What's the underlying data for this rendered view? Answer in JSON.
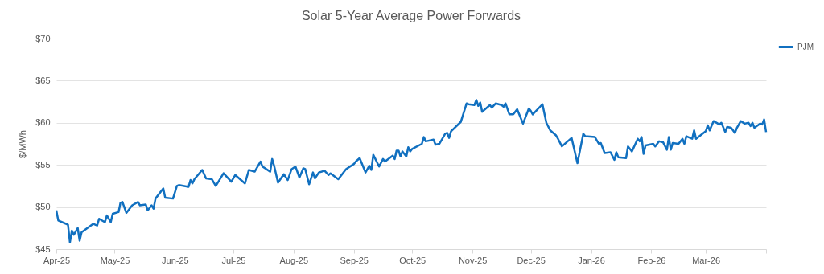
{
  "chart_data": {
    "type": "line",
    "title": "Solar 5-Year Average Power Forwards",
    "ylabel": "$/MWh",
    "x": [
      "2025-04-01",
      "2025-04-02",
      "2025-04-05",
      "2025-04-07",
      "2025-04-08",
      "2025-04-09",
      "2025-04-10",
      "2025-04-12",
      "2025-04-13",
      "2025-04-14",
      "2025-04-20",
      "2025-04-22",
      "2025-04-23",
      "2025-04-26",
      "2025-04-27",
      "2025-04-29",
      "2025-04-30",
      "2025-05-03",
      "2025-05-04",
      "2025-05-05",
      "2025-05-07",
      "2025-05-10",
      "2025-05-13",
      "2025-05-14",
      "2025-05-17",
      "2025-05-18",
      "2025-05-20",
      "2025-05-21",
      "2025-05-22",
      "2025-05-26",
      "2025-05-27",
      "2025-05-31",
      "2025-06-02",
      "2025-06-03",
      "2025-06-08",
      "2025-06-09",
      "2025-06-10",
      "2025-06-11",
      "2025-06-15",
      "2025-06-17",
      "2025-06-20",
      "2025-06-22",
      "2025-06-26",
      "2025-06-30",
      "2025-07-02",
      "2025-07-07",
      "2025-07-09",
      "2025-07-12",
      "2025-07-15",
      "2025-07-16",
      "2025-07-20",
      "2025-07-21",
      "2025-07-22",
      "2025-07-24",
      "2025-07-27",
      "2025-07-29",
      "2025-07-31",
      "2025-08-02",
      "2025-08-04",
      "2025-08-06",
      "2025-08-07",
      "2025-08-09",
      "2025-08-11",
      "2025-08-12",
      "2025-08-14",
      "2025-08-17",
      "2025-08-19",
      "2025-08-20",
      "2025-08-24",
      "2025-08-28",
      "2025-09-01",
      "2025-09-02",
      "2025-09-04",
      "2025-09-07",
      "2025-09-09",
      "2025-09-10",
      "2025-09-11",
      "2025-09-14",
      "2025-09-16",
      "2025-09-17",
      "2025-09-21",
      "2025-09-22",
      "2025-09-23",
      "2025-09-24",
      "2025-09-25",
      "2025-09-26",
      "2025-09-28",
      "2025-09-29",
      "2025-09-30",
      "2025-10-01",
      "2025-10-06",
      "2025-10-07",
      "2025-10-08",
      "2025-10-12",
      "2025-10-13",
      "2025-10-15",
      "2025-10-18",
      "2025-10-19",
      "2025-10-20",
      "2025-10-21",
      "2025-10-26",
      "2025-10-29",
      "2025-10-30",
      "2025-11-02",
      "2025-11-03",
      "2025-11-04",
      "2025-11-05",
      "2025-11-06",
      "2025-11-10",
      "2025-11-11",
      "2025-11-13",
      "2025-11-16",
      "2025-11-17",
      "2025-11-18",
      "2025-11-20",
      "2025-11-22",
      "2025-11-24",
      "2025-11-27",
      "2025-11-30",
      "2025-12-01",
      "2025-12-02",
      "2025-12-07",
      "2025-12-09",
      "2025-12-11",
      "2025-12-14",
      "2025-12-15",
      "2025-12-17",
      "2025-12-22",
      "2025-12-25",
      "2025-12-28",
      "2025-12-29",
      "2026-01-03",
      "2026-01-05",
      "2026-01-06",
      "2026-01-08",
      "2026-01-11",
      "2026-01-13",
      "2026-01-14",
      "2026-01-15",
      "2026-01-19",
      "2026-01-20",
      "2026-01-22",
      "2026-01-25",
      "2026-01-26",
      "2026-01-27",
      "2026-01-28",
      "2026-01-29",
      "2026-02-02",
      "2026-02-03",
      "2026-02-05",
      "2026-02-07",
      "2026-02-09",
      "2026-02-10",
      "2026-02-11",
      "2026-02-12",
      "2026-02-15",
      "2026-02-17",
      "2026-02-18",
      "2026-02-19",
      "2026-02-22",
      "2026-02-23",
      "2026-02-24",
      "2026-03-01",
      "2026-03-02",
      "2026-03-03",
      "2026-03-05",
      "2026-03-08",
      "2026-03-09",
      "2026-03-11",
      "2026-03-12",
      "2026-03-14",
      "2026-03-16",
      "2026-03-17",
      "2026-03-19",
      "2026-03-21",
      "2026-03-23",
      "2026-03-24",
      "2026-03-25",
      "2026-03-26",
      "2026-03-29",
      "2026-03-30",
      "2026-03-31",
      "2026-04-01"
    ],
    "series": [
      {
        "name": "PJM",
        "color": "#1170c0",
        "values": [
          49.6,
          48.4,
          48.1,
          47.9,
          45.8,
          47.2,
          46.7,
          47.5,
          46.0,
          47.0,
          48.0,
          47.8,
          48.6,
          48.2,
          49.0,
          48.2,
          49.2,
          49.4,
          50.5,
          50.6,
          49.3,
          50.2,
          50.6,
          50.2,
          50.3,
          49.6,
          50.2,
          49.8,
          51.0,
          52.2,
          51.1,
          51.0,
          52.5,
          52.6,
          52.4,
          53.2,
          52.8,
          53.3,
          54.4,
          53.4,
          53.3,
          52.5,
          54.0,
          53.0,
          53.8,
          52.8,
          54.4,
          54.2,
          55.4,
          54.8,
          54.2,
          55.7,
          54.9,
          52.9,
          53.9,
          53.2,
          54.5,
          54.8,
          53.5,
          54.6,
          54.5,
          52.7,
          54.1,
          53.4,
          54.1,
          54.3,
          53.8,
          54.0,
          53.3,
          54.5,
          55.1,
          55.4,
          55.8,
          54.1,
          54.9,
          54.4,
          56.2,
          54.8,
          55.7,
          55.4,
          56.1,
          55.7,
          56.7,
          56.7,
          56.0,
          56.6,
          56.0,
          57.1,
          56.6,
          56.9,
          57.5,
          58.3,
          57.8,
          58.0,
          57.4,
          57.5,
          58.7,
          58.8,
          58.2,
          59.0,
          60.1,
          62.3,
          62.2,
          62.1,
          62.7,
          62.0,
          62.4,
          61.3,
          62.1,
          61.8,
          62.3,
          62.1,
          61.9,
          62.3,
          61.0,
          61.0,
          61.6,
          59.9,
          61.7,
          61.4,
          61.0,
          62.2,
          60.0,
          59.1,
          58.5,
          58.1,
          57.2,
          58.2,
          55.2,
          58.7,
          58.4,
          58.3,
          57.5,
          57.6,
          56.4,
          56.5,
          55.6,
          56.5,
          55.9,
          55.8,
          57.2,
          56.6,
          58.1,
          57.8,
          58.3,
          56.3,
          57.3,
          57.5,
          57.2,
          57.8,
          57.7,
          56.8,
          58.3,
          56.8,
          57.6,
          57.5,
          58.1,
          57.5,
          58.4,
          58.1,
          59.1,
          58.1,
          59.0,
          59.7,
          59.1,
          60.2,
          59.8,
          60.0,
          58.9,
          59.5,
          59.4,
          58.8,
          59.4,
          60.2,
          59.9,
          60.0,
          59.6,
          60.0,
          59.4,
          59.9,
          59.8,
          60.4,
          58.9
        ]
      }
    ],
    "xlim": [
      "2025-04-01",
      "2026-04-01"
    ],
    "xticks": [
      {
        "value": "2025-04-01",
        "label": "Apr-25"
      },
      {
        "value": "2025-05-01",
        "label": "May-25"
      },
      {
        "value": "2025-06-01",
        "label": "Jun-25"
      },
      {
        "value": "2025-07-01",
        "label": "Jul-25"
      },
      {
        "value": "2025-08-01",
        "label": "Aug-25"
      },
      {
        "value": "2025-09-01",
        "label": "Sep-25"
      },
      {
        "value": "2025-10-01",
        "label": "Oct-25"
      },
      {
        "value": "2025-11-01",
        "label": "Nov-25"
      },
      {
        "value": "2025-12-01",
        "label": "Dec-25"
      },
      {
        "value": "2026-01-01",
        "label": "Jan-26"
      },
      {
        "value": "2026-02-01",
        "label": "Feb-26"
      },
      {
        "value": "2026-03-01",
        "label": "Mar-26"
      },
      {
        "value": "2026-04-01",
        "label": null
      }
    ],
    "ylim": [
      45,
      70
    ],
    "yticks": [
      {
        "value": 45,
        "label": "$45"
      },
      {
        "value": 50,
        "label": "$50"
      },
      {
        "value": 55,
        "label": "$55"
      },
      {
        "value": 60,
        "label": "$60"
      },
      {
        "value": 65,
        "label": "$65"
      },
      {
        "value": 70,
        "label": "$70"
      }
    ],
    "grid": "y",
    "legend": "right",
    "marker": "none",
    "line_style": "solid"
  }
}
